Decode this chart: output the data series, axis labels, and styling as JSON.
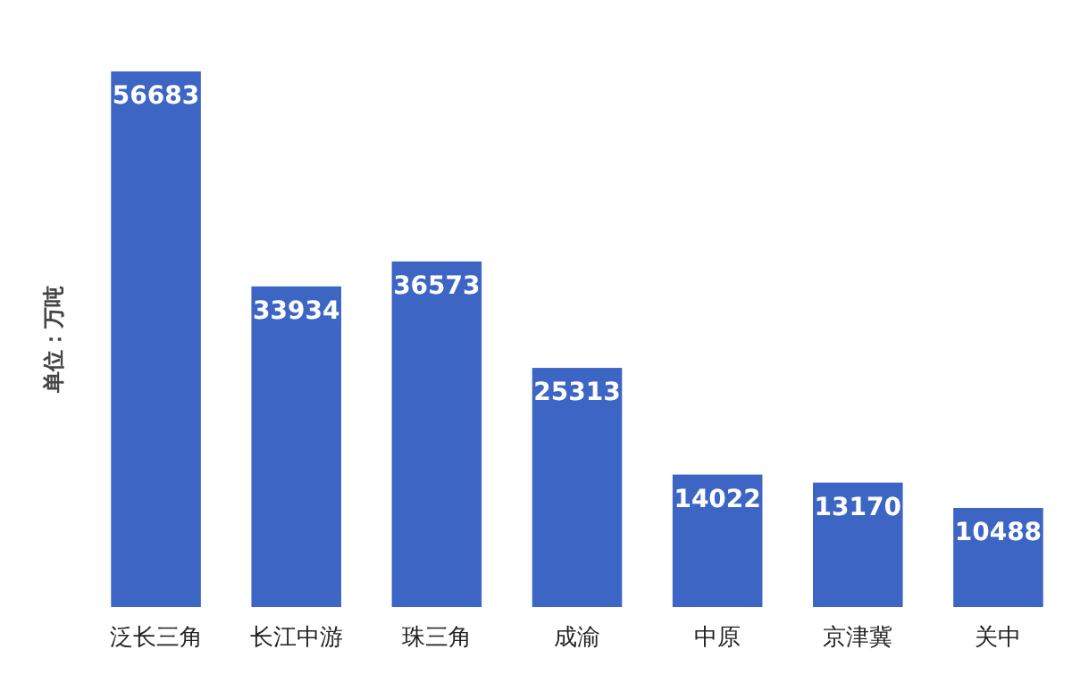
{
  "chart_data": {
    "type": "bar",
    "ylabel": "单位：万吨",
    "categories": [
      "泛长三角",
      "长江中游",
      "珠三角",
      "成渝",
      "中原",
      "京津冀",
      "关中"
    ],
    "values": [
      56683,
      33934,
      36573,
      25313,
      14022,
      13170,
      10488
    ],
    "color": "#3d66c4",
    "data_labels": true
  }
}
